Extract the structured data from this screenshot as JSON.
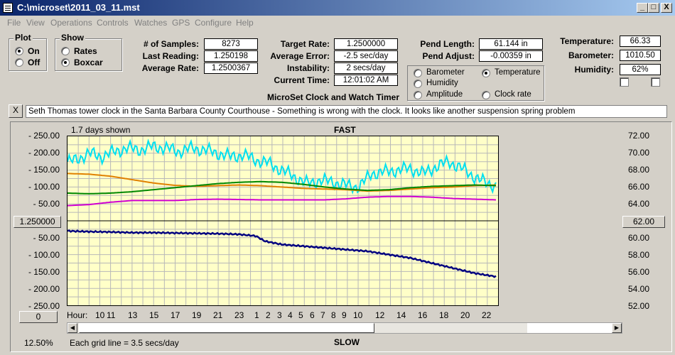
{
  "window": {
    "title": "C:\\microset\\2011_03_11.mst",
    "min": "_",
    "max": "□",
    "close": "X"
  },
  "menu": [
    "File",
    "View",
    "Operations",
    "Controls",
    "Watches",
    "GPS",
    "Configure",
    "Help"
  ],
  "plot_group": {
    "title": "Plot",
    "options": [
      "On",
      "Off"
    ],
    "selected": "On"
  },
  "show_group": {
    "title": "Show",
    "options": [
      "Rates",
      "Boxcar"
    ],
    "selected": "Boxcar"
  },
  "stats": {
    "samples_label": "# of Samples:",
    "samples": "8273",
    "last_label": "Last Reading:",
    "last": "1.250198",
    "avg_label": "Average Rate:",
    "avg": "1.2500367"
  },
  "timing": {
    "target_label": "Target Rate:",
    "target": "1.2500000",
    "error_label": "Average Error:",
    "error": "-2.5 sec/day",
    "instab_label": "Instability:",
    "instab": "2 secs/day",
    "time_label": "Current Time:",
    "time": "12:01:02 AM"
  },
  "app_caption": "MicroSet Clock and Watch Timer",
  "pendulum": {
    "length_label": "Pend Length:",
    "length": "61.144 in",
    "adjust_label": "Pend Adjust:",
    "adjust": "-0.00359 in"
  },
  "environment": {
    "temp_label": "Temperature:",
    "temp": "66.33",
    "baro_label": "Barometer:",
    "baro": "1010.50",
    "humid_label": "Humidity:",
    "humid": "62%"
  },
  "series_select": {
    "options": [
      {
        "label": "Barometer",
        "color": "#e07800"
      },
      {
        "label": "Temperature",
        "color": "#008800"
      },
      {
        "label": "Humidity",
        "color": "#d000d0"
      },
      {
        "label": "Amplitude",
        "color": "#00c8e0"
      },
      {
        "label": "Clock rate",
        "color": "#000000"
      }
    ],
    "selected": "Temperature"
  },
  "notes_close": "X",
  "notes": "Seth Thomas tower clock in the Santa Barbara County Courthouse - Something is wrong with the clock. It looks like another suspension spring problem",
  "chart_header": {
    "days_shown": "1.7 days shown",
    "top": "FAST",
    "bottom": "SLOW"
  },
  "center_value_btn": "1.250000",
  "right_value_btn": "62.00",
  "zero_btn": "0",
  "zoom": "12.50%",
  "grid_note": "Each grid line = 3.5 secs/day",
  "hour_label": "Hour:",
  "chart_data": {
    "type": "line",
    "left_ticks": [
      "250.00",
      "200.00",
      "150.00",
      "100.00",
      "50.00",
      "",
      "50.00",
      "100.00",
      "150.00",
      "200.00",
      "250.00"
    ],
    "right_ticks": [
      "72.00",
      "70.00",
      "68.00",
      "66.00",
      "64.00",
      "62.00",
      "60.00",
      "58.00",
      "56.00",
      "54.00",
      "52.00"
    ],
    "hour_ticks": [
      "10",
      "11",
      "13",
      "15",
      "17",
      "19",
      "21",
      "23",
      "1",
      "2",
      "3",
      "4",
      "5",
      "6",
      "7",
      "8",
      "9",
      "10",
      "12",
      "14",
      "16",
      "18",
      "20",
      "22"
    ],
    "series": [
      {
        "color": "#00e0f0",
        "x": [
          0,
          0.02,
          0.05,
          0.08,
          0.11,
          0.14,
          0.17,
          0.2,
          0.23,
          0.26,
          0.29,
          0.32,
          0.35,
          0.38,
          0.41,
          0.44,
          0.47,
          0.5,
          0.53,
          0.56,
          0.59,
          0.62,
          0.65,
          0.68,
          0.71,
          0.74,
          0.77,
          0.8,
          0.83,
          0.86,
          0.89,
          0.92,
          0.95,
          0.98,
          1.0
        ],
        "y": [
          175,
          180,
          200,
          190,
          205,
          215,
          210,
          220,
          215,
          205,
          215,
          210,
          200,
          190,
          195,
          180,
          170,
          150,
          130,
          110,
          120,
          115,
          105,
          100,
          140,
          145,
          150,
          155,
          140,
          160,
          175,
          155,
          130,
          110,
          105
        ]
      },
      {
        "color": "#e08000",
        "x": [
          0,
          0.05,
          0.1,
          0.15,
          0.2,
          0.25,
          0.3,
          0.35,
          0.4,
          0.45,
          0.5,
          0.55,
          0.6,
          0.65,
          0.7,
          0.75,
          0.8,
          0.85,
          0.9,
          0.95,
          1.0
        ],
        "y": [
          140,
          138,
          132,
          122,
          112,
          105,
          102,
          104,
          106,
          104,
          100,
          96,
          94,
          92,
          88,
          90,
          94,
          98,
          100,
          104,
          106
        ]
      },
      {
        "color": "#008800",
        "x": [
          0,
          0.05,
          0.1,
          0.15,
          0.2,
          0.25,
          0.3,
          0.35,
          0.4,
          0.45,
          0.5,
          0.55,
          0.6,
          0.65,
          0.7,
          0.75,
          0.8,
          0.85,
          0.9,
          0.95,
          1.0
        ],
        "y": [
          82,
          80,
          82,
          86,
          92,
          98,
          104,
          110,
          114,
          116,
          114,
          108,
          100,
          94,
          90,
          92,
          98,
          102,
          104,
          106,
          104
        ]
      },
      {
        "color": "#d000d0",
        "x": [
          0,
          0.05,
          0.1,
          0.15,
          0.2,
          0.25,
          0.3,
          0.35,
          0.4,
          0.45,
          0.5,
          0.55,
          0.6,
          0.65,
          0.7,
          0.75,
          0.8,
          0.85,
          0.9,
          0.95,
          1.0
        ],
        "y": [
          45,
          48,
          55,
          60,
          60,
          60,
          63,
          64,
          63,
          62,
          62,
          62,
          62,
          65,
          70,
          72,
          72,
          70,
          66,
          64,
          62
        ]
      },
      {
        "color": "#000080",
        "x": [
          0,
          0.05,
          0.1,
          0.15,
          0.2,
          0.25,
          0.3,
          0.35,
          0.4,
          0.44,
          0.46,
          0.5,
          0.55,
          0.6,
          0.65,
          0.7,
          0.75,
          0.8,
          0.85,
          0.9,
          0.95,
          1.0
        ],
        "y": [
          -30,
          -32,
          -33,
          -35,
          -35,
          -36,
          -37,
          -38,
          -40,
          -45,
          -60,
          -70,
          -75,
          -80,
          -85,
          -90,
          -100,
          -110,
          -125,
          -140,
          -155,
          -165
        ]
      }
    ]
  }
}
